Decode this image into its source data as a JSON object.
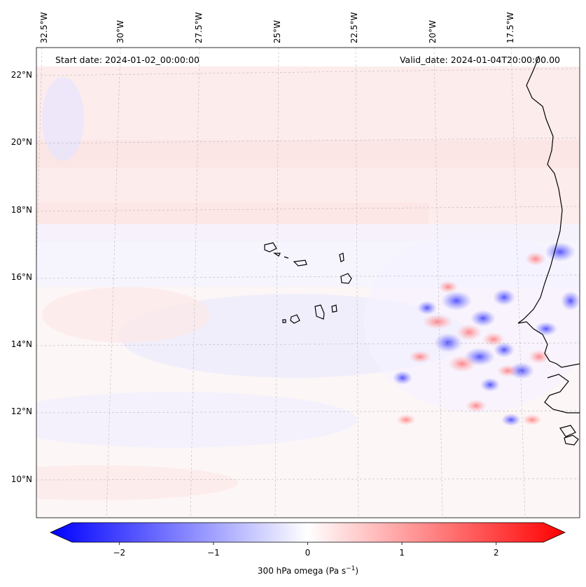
{
  "header": {
    "start_date": "Start date: 2024-01-02_00:00:00",
    "valid_date": "Valid_date: 2024-01-04T20:00:00.00"
  },
  "map": {
    "longitude_labels": [
      "32.5°W",
      "30°W",
      "27.5°W",
      "25°W",
      "22.5°W",
      "20°W",
      "17.5°W"
    ],
    "latitude_labels": [
      "22°N",
      "20°N",
      "18°N",
      "16°N",
      "14°N",
      "12°N",
      "10°N"
    ],
    "field_description": "300 hPa vertical velocity (omega)"
  },
  "colorbar": {
    "label_prefix": "300 hPa omega (Pa s",
    "label_exponent": "−1",
    "label_suffix": ")",
    "tick_labels": [
      "−2",
      "−1",
      "0",
      "1",
      "2"
    ],
    "tick_values": [
      -2,
      -1,
      0,
      1,
      2
    ],
    "range": [
      -2.5,
      2.5
    ],
    "colormap": "bwr",
    "color_low": "#0000ff",
    "color_mid": "#ffffff",
    "color_high": "#ff0000"
  },
  "chart_data": {
    "type": "heatmap",
    "title": "300 hPa omega",
    "units": "Pa s-1",
    "value_range": [
      -2.5,
      2.5
    ],
    "longitude_range_degW": [
      33.5,
      15.7
    ],
    "latitude_range_degN": [
      8.8,
      22.8
    ],
    "longitude_ticks": [
      "32.5°W",
      "30°W",
      "27.5°W",
      "25°W",
      "22.5°W",
      "20°W",
      "17.5°W"
    ],
    "latitude_ticks": [
      "22°N",
      "20°N",
      "18°N",
      "16°N",
      "14°N",
      "12°N",
      "10°N"
    ],
    "colorbar_ticks": [
      -2,
      -1,
      0,
      1,
      2
    ]
  }
}
